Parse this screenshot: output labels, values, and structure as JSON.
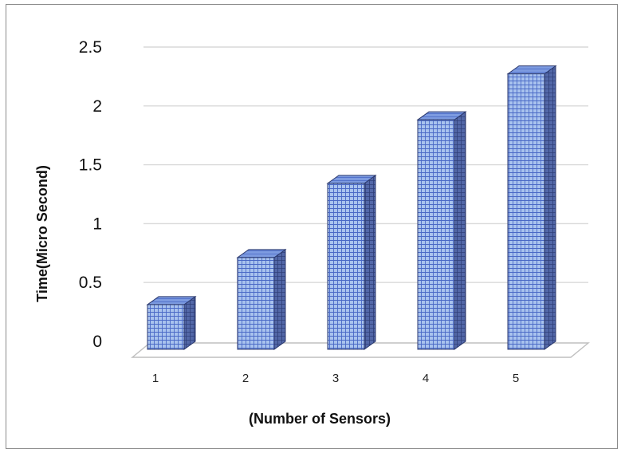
{
  "chart_data": {
    "type": "bar",
    "title": "",
    "xlabel": "(Number of Sensors)",
    "ylabel": "Time(Micro Second)",
    "categories": [
      "1",
      "2",
      "3",
      "4",
      "5"
    ],
    "values": [
      0.38,
      0.78,
      1.41,
      1.95,
      2.34
    ],
    "ylim": [
      0,
      2.5
    ],
    "yticks": [
      "0",
      "0.5",
      "1",
      "1.5",
      "2",
      "2.5"
    ],
    "grid": true,
    "legend": "none",
    "style": "3d-column",
    "colors": {
      "bar_front": "#a9c3ee",
      "bar_grid": "#4a69c6",
      "bar_top": "#7d9be0",
      "bar_side": "#5368a8",
      "gridline": "#d9d9d9",
      "floor": "#bfbfbf"
    }
  }
}
